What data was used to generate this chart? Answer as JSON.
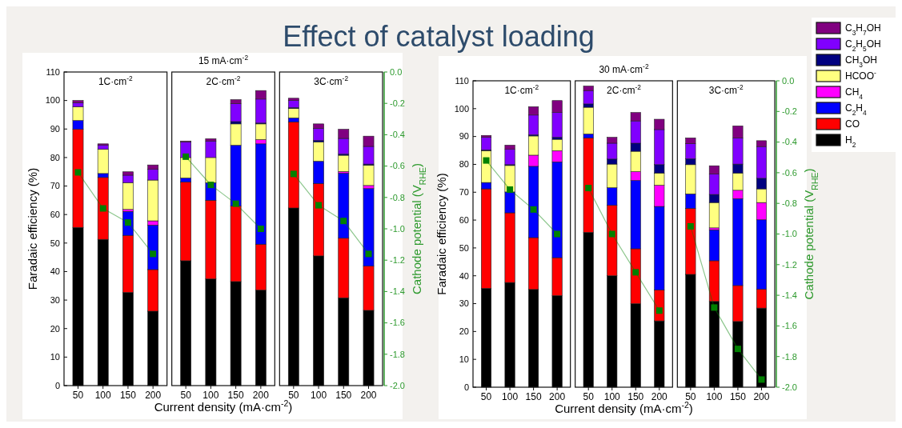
{
  "chart_data": [
    {
      "type": "bar",
      "stacked": true,
      "annotations": [
        "Effect of catalyst loading"
      ],
      "subtitle": "1C·cm$^{-2}$",
      "ylabel": "Faradaic efficiency (%)",
      "tick_labels": "xy",
      "categories": [
        "50",
        "100",
        "150",
        "200"
      ],
      "ylim": [
        0,
        110
      ],
      "yticks": [
        0,
        10,
        20,
        30,
        40,
        50,
        60,
        70,
        80,
        90,
        100,
        110
      ],
      "y2lim": [
        -2,
        0
      ],
      "series": [
        {
          "color": "#000000",
          "values": [
            55.5,
            51.3,
            32.7,
            26.1
          ]
        },
        {
          "color": "#ff0000",
          "values": [
            34.4,
            21.7,
            20.0,
            14.6
          ]
        },
        {
          "color": "#0000ff",
          "values": [
            3.1,
            1.4,
            8.4,
            15.6
          ]
        },
        {
          "color": "#ff00ff",
          "values": [
            0,
            0,
            0.7,
            1.5
          ]
        },
        {
          "color": "#ffff80",
          "values": [
            4.8,
            8.5,
            9.4,
            14.3
          ]
        },
        {
          "color": "#000080",
          "values": [
            0,
            0,
            0,
            0
          ]
        },
        {
          "color": "#8000ff",
          "values": [
            1.4,
            1.5,
            2.6,
            3.8
          ]
        },
        {
          "color": "#800080",
          "values": [
            0.8,
            0.4,
            1.2,
            1.5
          ]
        },
        {
          "type": "line",
          "axis": "y2",
          "marker": "square",
          "color": "#008000",
          "values": [
            -0.64,
            -0.87,
            -0.96,
            -1.16
          ]
        }
      ]
    },
    {
      "type": "bar",
      "stacked": true,
      "title": "15 mA·cm$^{-2}$",
      "subtitle": "2C·cm$^{-2}$",
      "xlabel": "Current density (mA·cm$^{-2}$)",
      "tick_labels": "x",
      "categories": [
        "50",
        "100",
        "150",
        "200"
      ],
      "ylim": [
        0,
        110
      ],
      "y2lim": [
        -2,
        0
      ],
      "series": [
        {
          "color": "#000000",
          "values": [
            43.8,
            37.4,
            36.5,
            33.5
          ]
        },
        {
          "color": "#ff0000",
          "values": [
            27.6,
            27.6,
            26.5,
            16.1
          ]
        },
        {
          "color": "#0000ff",
          "values": [
            1.4,
            6.2,
            21.3,
            35.2
          ]
        },
        {
          "color": "#ff00ff",
          "values": [
            0,
            0,
            null,
            1.5
          ]
        },
        {
          "color": "#ffff80",
          "values": [
            7.2,
            8.8,
            7.5,
            5.5
          ]
        },
        {
          "color": "#000080",
          "values": [
            0,
            0,
            0.8,
            0.3
          ]
        },
        {
          "color": "#8000ff",
          "values": [
            5.5,
            5.8,
            6.3,
            8.4
          ]
        },
        {
          "color": "#800080",
          "values": [
            0.3,
            0.8,
            1.4,
            3.0
          ]
        },
        {
          "type": "line",
          "axis": "y2",
          "marker": "square",
          "color": "#008000",
          "values": [
            -0.54,
            -0.72,
            -0.84,
            -1.0
          ]
        }
      ]
    },
    {
      "type": "bar",
      "stacked": true,
      "subtitle": "3C·cm$^{-2}$",
      "y2label": "Cathode potential (V$_{RHE}$)",
      "tick_labels": "xy2",
      "categories": [
        "50",
        "100",
        "150",
        "200"
      ],
      "ylim": [
        0,
        110
      ],
      "y2lim": [
        -2,
        0
      ],
      "y2ticks": [
        {
          "value": 0,
          "label": "0.0"
        },
        -0.2,
        -0.4,
        -0.6,
        -0.8,
        {
          "value": -1,
          "label": "-1.0"
        },
        -1.2,
        -1.4,
        -1.6,
        -1.8,
        {
          "value": -2,
          "label": "-2.0"
        }
      ],
      "series": [
        {
          "color": "#000000",
          "values": [
            62.3,
            45.5,
            30.8,
            26.4
          ]
        },
        {
          "color": "#ff0000",
          "values": [
            30.2,
            25.4,
            20.9,
            15.5
          ]
        },
        {
          "color": "#0000ff",
          "values": [
            1.4,
            7.8,
            22.8,
            27.2
          ]
        },
        {
          "color": "#ff00ff",
          "values": [
            0,
            0,
            0.6,
            1.1
          ]
        },
        {
          "color": "#ffff80",
          "values": [
            3.3,
            6.8,
            5.7,
            7.1
          ]
        },
        {
          "color": "#000080",
          "values": [
            0.3,
            0.5,
            0.4,
            0.4
          ]
        },
        {
          "color": "#8000ff",
          "values": [
            2.5,
            4.2,
            5.5,
            6.2
          ]
        },
        {
          "color": "#800080",
          "values": [
            0.8,
            1.6,
            3.2,
            3.6
          ]
        },
        {
          "type": "line",
          "axis": "y2",
          "marker": "square",
          "color": "#008000",
          "values": [
            -0.65,
            -0.85,
            -0.95,
            -1.16
          ]
        }
      ]
    },
    {
      "type": "bar",
      "stacked": true,
      "subtitle": "1C·cm$^{-2}$",
      "ylabel": "Faradaic efficiency (%)",
      "tick_labels": "xy",
      "categories": [
        "50",
        "100",
        "150",
        "200"
      ],
      "ylim": [
        0,
        110
      ],
      "yticks": [
        0,
        10,
        20,
        30,
        40,
        50,
        60,
        70,
        80,
        90,
        100,
        110
      ],
      "y2lim": [
        -2,
        0
      ],
      "series": [
        {
          "color": "#000000",
          "values": [
            35.5,
            37.6,
            35.1,
            32.9
          ]
        },
        {
          "color": "#ff0000",
          "values": [
            35.7,
            25.0,
            18.6,
            13.6
          ]
        },
        {
          "color": "#0000ff",
          "values": [
            2.3,
            7.5,
            25.6,
            34.4
          ]
        },
        {
          "color": "#ff00ff",
          "values": [
            0,
            0,
            4.0,
            4.0
          ]
        },
        {
          "color": "#ffff80",
          "values": [
            11.4,
            9.5,
            6.9,
            4.1
          ]
        },
        {
          "color": "#000080",
          "values": [
            0.3,
            0.3,
            0.4,
            0.7
          ]
        },
        {
          "color": "#8000ff",
          "values": [
            4.6,
            5.5,
            7.1,
            8.9
          ]
        },
        {
          "color": "#800080",
          "values": [
            0.6,
            1.5,
            3.0,
            4.3
          ]
        },
        {
          "type": "line",
          "axis": "y2",
          "marker": "square",
          "color": "#008000",
          "values": [
            -0.52,
            -0.71,
            -0.84,
            -1.0
          ]
        }
      ]
    },
    {
      "type": "bar",
      "stacked": true,
      "title": "30 mA·cm$^{-2}$",
      "subtitle": "2C·cm$^{-2}$",
      "xlabel": "Current density (mA·cm$^{-2}$)",
      "tick_labels": "x",
      "categories": [
        "50",
        "100",
        "150",
        "200"
      ],
      "ylim": [
        0,
        110
      ],
      "y2lim": [
        -2,
        0
      ],
      "series": [
        {
          "color": "#000000",
          "values": [
            55.6,
            40.0,
            30.0,
            23.8
          ]
        },
        {
          "color": "#ff0000",
          "values": [
            33.9,
            25.3,
            19.7,
            11.1
          ]
        },
        {
          "color": "#0000ff",
          "values": [
            1.4,
            6.3,
            24.5,
            30.0
          ]
        },
        {
          "color": "#ff00ff",
          "values": [
            0,
            0,
            3.2,
            7.6
          ]
        },
        {
          "color": "#ffff80",
          "values": [
            9.6,
            8.5,
            7.3,
            4.4
          ]
        },
        {
          "color": "#000080",
          "values": [
            1.2,
            1.8,
            2.9,
            3.0
          ]
        },
        {
          "color": "#8000ff",
          "values": [
            4.8,
            5.7,
            8.0,
            12.6
          ]
        },
        {
          "color": "#800080",
          "values": [
            1.6,
            2.1,
            3.0,
            3.7
          ]
        },
        {
          "type": "line",
          "axis": "y2",
          "marker": "square",
          "color": "#008000",
          "values": [
            -0.7,
            -1.0,
            -1.25,
            -1.5
          ]
        }
      ]
    },
    {
      "type": "bar",
      "stacked": true,
      "subtitle": "3C·cm$^{-2}$",
      "y2label": "Cathode potential (V$_{RHE}$)",
      "tick_labels": "xy2",
      "legend": "right",
      "categories": [
        "50",
        "100",
        "150",
        "200"
      ],
      "ylim": [
        0,
        110
      ],
      "y2lim": [
        -2,
        0
      ],
      "y2ticks": [
        {
          "value": 0,
          "label": "0.0"
        },
        -0.2,
        -0.4,
        -0.6,
        -0.8,
        {
          "value": -1,
          "label": "-1.0"
        },
        -1.2,
        -1.4,
        -1.6,
        -1.8,
        {
          "value": -2,
          "label": "-2.0"
        }
      ],
      "series": [
        {
          "name": "H$_{2}$",
          "color": "#000000",
          "values": [
            40.5,
            30.8,
            23.6,
            28.4
          ]
        },
        {
          "name": "CO",
          "color": "#ff0000",
          "values": [
            23.7,
            14.6,
            12.9,
            6.8
          ]
        },
        {
          "name": "C$_{2}$H$_{4}$",
          "color": "#0000ff",
          "values": [
            5.2,
            11.1,
            31.2,
            24.9
          ]
        },
        {
          "name": "CH$_{4}$",
          "color": "#ff00ff",
          "values": [
            0,
            0.7,
            3.0,
            6.2
          ]
        },
        {
          "name": "HCOO$^{-}$",
          "color": "#ffff80",
          "values": [
            10.5,
            9.1,
            6.2,
            4.9
          ]
        },
        {
          "name": "CH$_{3}$OH",
          "color": "#000080",
          "values": [
            2.1,
            2.9,
            3.2,
            3.8
          ]
        },
        {
          "name": "C$_{2}$H$_{5}$OH",
          "color": "#8000ff",
          "values": [
            5.4,
            7.4,
            9.4,
            11.4
          ]
        },
        {
          "name": "C$_{3}$H$_{7}$OH",
          "color": "#800080",
          "values": [
            2.1,
            2.9,
            4.3,
            2.1
          ]
        },
        {
          "type": "line",
          "axis": "y2",
          "marker": "square",
          "color": "#008000",
          "values": [
            -0.95,
            -1.48,
            -1.75,
            -1.95
          ]
        }
      ]
    }
  ]
}
